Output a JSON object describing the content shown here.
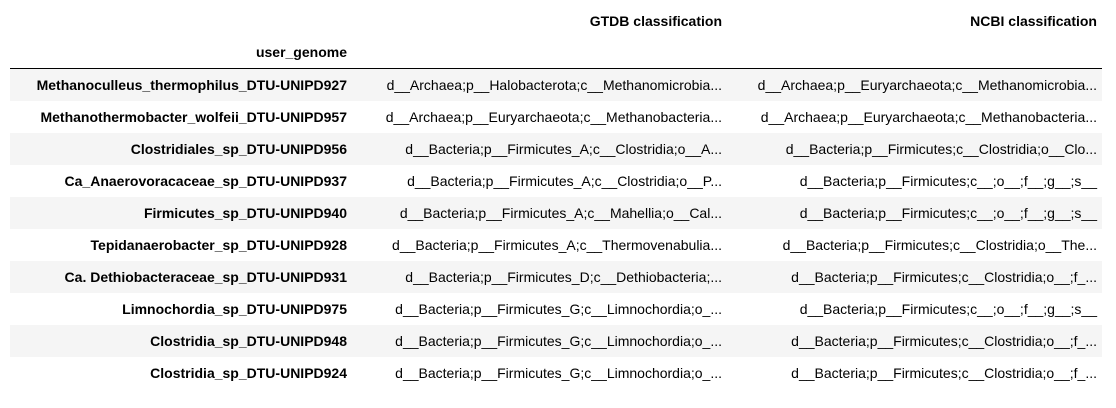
{
  "table": {
    "column_headers": [
      "GTDB classification",
      "NCBI classification"
    ],
    "index_name": "user_genome",
    "rows": [
      {
        "genome": "Methanoculleus_thermophilus_DTU-UNIPD927",
        "gtdb": "d__Archaea;p__Halobacterota;c__Methanomicrobia...",
        "ncbi": "d__Archaea;p__Euryarchaeota;c__Methanomicrobia..."
      },
      {
        "genome": "Methanothermobacter_wolfeii_DTU-UNIPD957",
        "gtdb": "d__Archaea;p__Euryarchaeota;c__Methanobacteria...",
        "ncbi": "d__Archaea;p__Euryarchaeota;c__Methanobacteria..."
      },
      {
        "genome": "Clostridiales_sp_DTU-UNIPD956",
        "gtdb": "d__Bacteria;p__Firmicutes_A;c__Clostridia;o__A...",
        "ncbi": "d__Bacteria;p__Firmicutes;c__Clostridia;o__Clo..."
      },
      {
        "genome": "Ca_Anaerovoracaceae_sp_DTU-UNIPD937",
        "gtdb": "d__Bacteria;p__Firmicutes_A;c__Clostridia;o__P...",
        "ncbi": "d__Bacteria;p__Firmicutes;c__;o__;f__;g__;s__"
      },
      {
        "genome": "Firmicutes_sp_DTU-UNIPD940",
        "gtdb": "d__Bacteria;p__Firmicutes_A;c__Mahellia;o__Cal...",
        "ncbi": "d__Bacteria;p__Firmicutes;c__;o__;f__;g__;s__"
      },
      {
        "genome": "Tepidanaerobacter_sp_DTU-UNIPD928",
        "gtdb": "d__Bacteria;p__Firmicutes_A;c__Thermovenabulia...",
        "ncbi": "d__Bacteria;p__Firmicutes;c__Clostridia;o__The..."
      },
      {
        "genome": "Ca. Dethiobacteraceae_sp_DTU-UNIPD931",
        "gtdb": "d__Bacteria;p__Firmicutes_D;c__Dethiobacteria;...",
        "ncbi": "d__Bacteria;p__Firmicutes;c__Clostridia;o__;f_..."
      },
      {
        "genome": "Limnochordia_sp_DTU-UNIPD975",
        "gtdb": "d__Bacteria;p__Firmicutes_G;c__Limnochordia;o_...",
        "ncbi": "d__Bacteria;p__Firmicutes;c__;o__;f__;g__;s__"
      },
      {
        "genome": "Clostridia_sp_DTU-UNIPD948",
        "gtdb": "d__Bacteria;p__Firmicutes_G;c__Limnochordia;o_...",
        "ncbi": "d__Bacteria;p__Firmicutes;c__Clostridia;o__;f_..."
      },
      {
        "genome": "Clostridia_sp_DTU-UNIPD924",
        "gtdb": "d__Bacteria;p__Firmicutes_G;c__Limnochordia;o_...",
        "ncbi": "d__Bacteria;p__Firmicutes;c__Clostridia;o__;f_..."
      }
    ]
  }
}
